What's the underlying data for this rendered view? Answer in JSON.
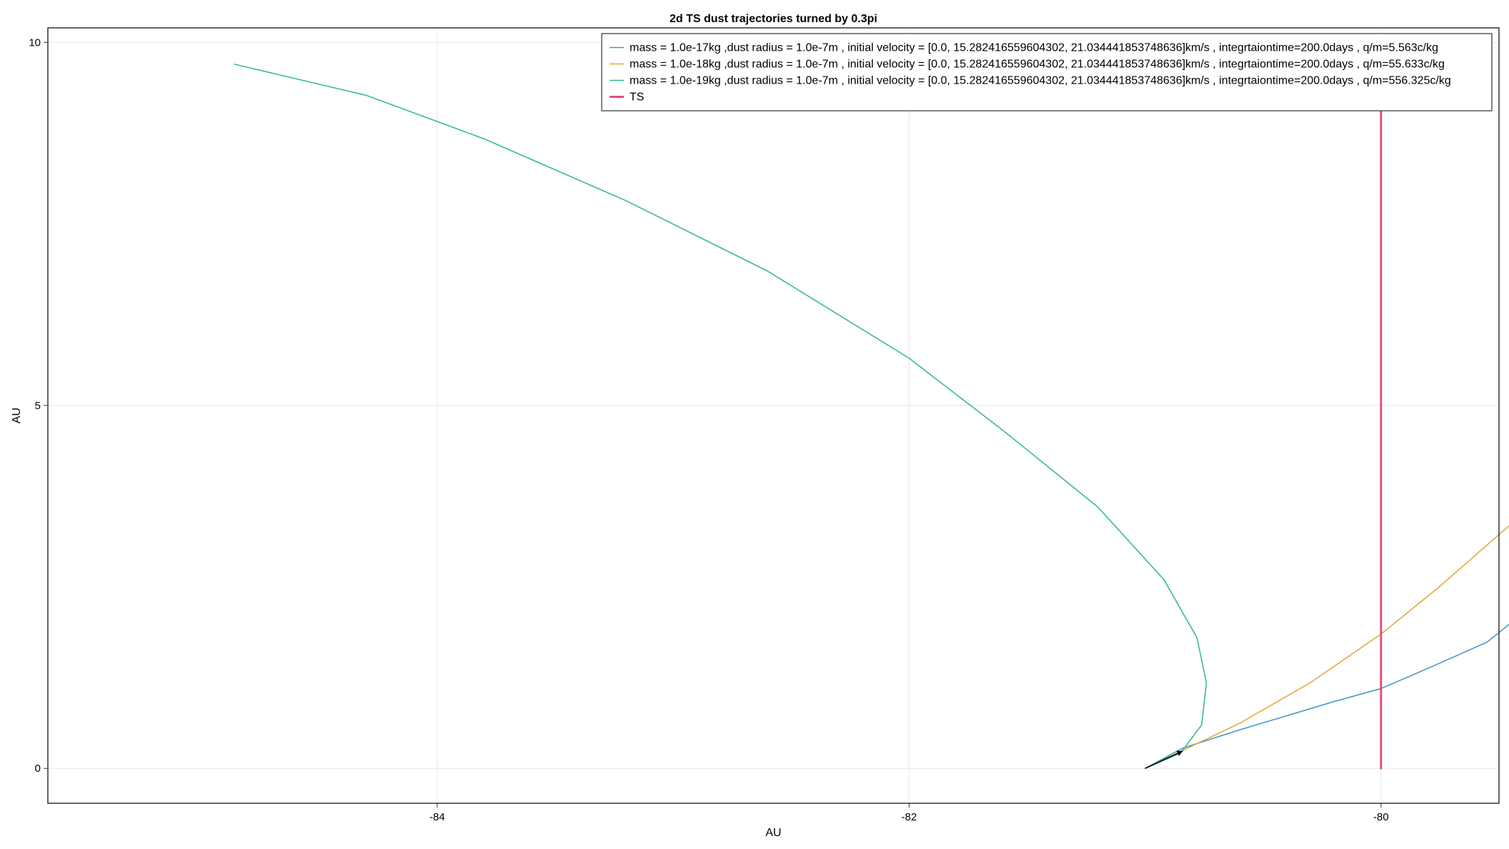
{
  "chart_data": {
    "type": "line",
    "title": "2d TS dust trajectories turned by 0.3pi",
    "xlabel": "AU",
    "ylabel": "AU",
    "xlim": [
      -85.65,
      -79.5
    ],
    "ylim": [
      -0.48,
      10.2
    ],
    "xticks": [
      -84,
      -82,
      -80
    ],
    "yticks": [
      0,
      5,
      10
    ],
    "grid": true,
    "legend_position": "top-right",
    "series": [
      {
        "name": "mass = 1.0e-17kg ,dust radius = 1.0e-7m , initial velocity = [0.0, 15.282416559604302, 21.034441853748636]km/s , integrtaiontime=200.0days , q/m=5.563c/kg",
        "color": "#3f94c9",
        "line_width": 1.5,
        "x": [
          -81.0,
          -80.84,
          -80.6,
          -80.2,
          -80.0,
          -79.8,
          -79.55,
          -79.25
        ],
        "y": [
          0.0,
          0.28,
          0.53,
          0.92,
          1.1,
          1.38,
          1.74,
          2.53
        ]
      },
      {
        "name": "mass = 1.0e-18kg ,dust radius = 1.0e-7m , initial velocity = [0.0, 15.282416559604302, 21.034441853748636]km/s , integrtaiontime=200.0days , q/m=55.633c/kg",
        "color": "#e3a535",
        "line_width": 1.5,
        "x": [
          -81.0,
          -80.82,
          -80.6,
          -80.3,
          -80.0,
          -79.75,
          -79.43
        ],
        "y": [
          0.0,
          0.28,
          0.62,
          1.18,
          1.85,
          2.51,
          3.42
        ]
      },
      {
        "name": "mass = 1.0e-19kg ,dust radius = 1.0e-7m , initial velocity = [0.0, 15.282416559604302, 21.034441853748636]km/s , integrtaiontime=200.0days , q/m=556.325c/kg",
        "color": "#2cb88f",
        "line_width": 1.5,
        "x": [
          -81.0,
          -80.85,
          -80.76,
          -80.74,
          -80.78,
          -80.92,
          -81.2,
          -81.6,
          -82.0,
          -82.6,
          -83.2,
          -83.8,
          -84.3,
          -84.86
        ],
        "y": [
          0.0,
          0.21,
          0.6,
          1.18,
          1.8,
          2.6,
          3.6,
          4.65,
          5.65,
          6.85,
          7.82,
          8.67,
          9.27,
          9.7
        ]
      },
      {
        "name": "TS",
        "color": "#e0507a",
        "line_width": 3,
        "x": [
          -80.0,
          -80.0
        ],
        "y": [
          0.0,
          9.45
        ]
      }
    ],
    "annotations": [
      {
        "type": "arrow",
        "from": [
          -81.0,
          0.0
        ],
        "to": [
          -80.84,
          0.24
        ],
        "color": "#000000"
      }
    ]
  }
}
